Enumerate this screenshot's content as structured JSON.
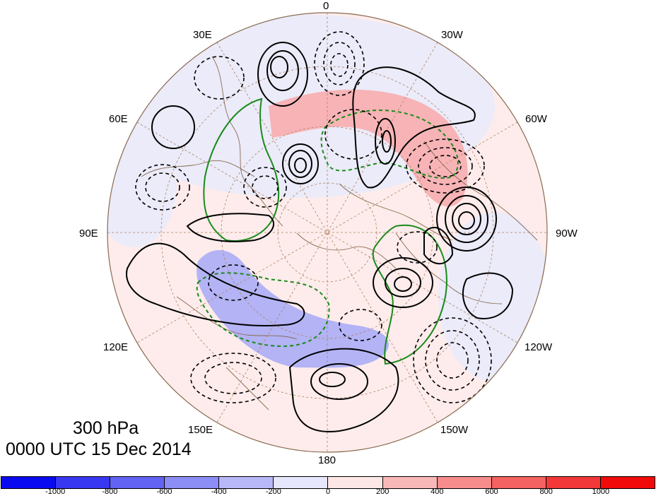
{
  "map": {
    "longitude_labels": [
      {
        "id": "lon-0",
        "text": "0"
      },
      {
        "id": "lon-30w",
        "text": "30W"
      },
      {
        "id": "lon-60w",
        "text": "60W"
      },
      {
        "id": "lon-90w",
        "text": "90W"
      },
      {
        "id": "lon-120w",
        "text": "120W"
      },
      {
        "id": "lon-150w",
        "text": "150W"
      },
      {
        "id": "lon-180",
        "text": "180"
      },
      {
        "id": "lon-150e",
        "text": "150E"
      },
      {
        "id": "lon-120e",
        "text": "120E"
      },
      {
        "id": "lon-90e",
        "text": "90E"
      },
      {
        "id": "lon-60e",
        "text": "60E"
      },
      {
        "id": "lon-30e",
        "text": "30E"
      }
    ],
    "projection": "north polar stereographic",
    "contour_colors": {
      "positive": "#000000",
      "negative": "#000000",
      "green": "#1a8a1a"
    },
    "shading_colors": {
      "positive": "#f7b3b6",
      "negative": "#b3b3f5",
      "background_pos": "#fdeceb",
      "background_neg": "#ebebf9"
    }
  },
  "caption": {
    "level": "300 hPa",
    "time": "0000 UTC 15 Dec 2014"
  },
  "colorbar": {
    "colors": [
      "#0a0af0",
      "#3838f2",
      "#6262f4",
      "#8d8df6",
      "#b8b8f9",
      "#e6e6fc",
      "#fde6e6",
      "#f9b8b8",
      "#f68c8c",
      "#f46262",
      "#f23838",
      "#f00a0a"
    ],
    "labels": [
      "-1000",
      "-800",
      "-600",
      "-400",
      "-200",
      "0",
      "200",
      "400",
      "600",
      "800",
      "1000"
    ]
  }
}
